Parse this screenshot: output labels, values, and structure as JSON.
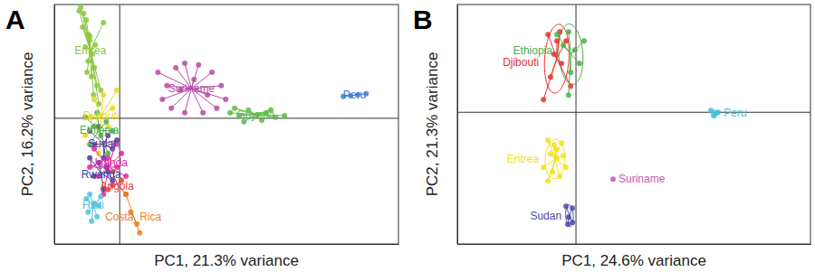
{
  "chart_data": [
    {
      "type": "scatter",
      "title": "A",
      "x_label": "PC1, 21.3% variance",
      "y_label": "PC2, 16.2% variance",
      "xlim": [
        -1.9,
        8.1
      ],
      "ylim": [
        -5.25,
        4.75
      ],
      "xticks": [
        0
      ],
      "yticks": [
        0
      ],
      "grid": true,
      "tick_labels": false,
      "series": [
        {
          "name": "Eritrea",
          "color": "#8cc63f",
          "x": [
            -1.13,
            -1.05,
            -0.97,
            -1.08,
            -0.92,
            -0.87,
            -1,
            -0.79,
            -0.92,
            -0.74,
            -0.82,
            -0.66,
            -0.76,
            -0.61,
            -0.87,
            -1.18,
            -0.47,
            -0.71,
            -0.95,
            -0.55
          ],
          "values": [
            4.64,
            4.38,
            4.11,
            3.81,
            3.51,
            3.25,
            2.98,
            2.68,
            2.38,
            2.11,
            1.74,
            1.36,
            0.98,
            0.6,
            3.43,
            4.49,
            4,
            3.06,
            1.92,
            1.17
          ]
        },
        {
          "name": "Sudan",
          "color": "#5b3a9a",
          "x": [
            -0.61,
            -0.34,
            -0.74,
            -0.21,
            -0.47,
            -0.87,
            -0.08,
            -0.39
          ],
          "values": [
            -0.34,
            -0.72,
            -1.09,
            -1.28,
            -1.66,
            -0.53,
            -0.91,
            -2.04
          ]
        },
        {
          "name": "Djibouti",
          "color": "#e6d81e",
          "x": [
            -0.74,
            -0.47,
            -0.21,
            -0.87,
            -0.34,
            -0.61,
            -0.08,
            -1
          ],
          "values": [
            0.79,
            0.98,
            0.42,
            0.04,
            -0.34,
            -1.47,
            1.17,
            -0.72
          ]
        },
        {
          "name": "Ethiopia",
          "color": "#4daf4a",
          "x": [
            -0.66,
            -0.39,
            -0.87,
            -0.55,
            -0.21,
            -0.74,
            -0.34,
            -1
          ],
          "values": [
            0.23,
            -0.15,
            -1.09,
            -0.72,
            -0.53,
            -0.34,
            -1.47,
            0.04
          ]
        },
        {
          "name": "Rwanda",
          "color": "#3b3f9e",
          "x": [
            -0.61,
            -0.34,
            -0.87,
            -0.21,
            -0.47,
            -0.74
          ],
          "values": [
            -1.85,
            -2.23,
            -1.66,
            -2.6,
            -2.98,
            -2.42
          ]
        },
        {
          "name": "Uganda",
          "color": "#e0259a",
          "x": [
            -0.74,
            -0.34,
            -0.08,
            -0.61,
            -0.21,
            -0.87,
            0.05,
            -0.47,
            0.18,
            -0.13
          ],
          "values": [
            -1.28,
            -1.66,
            -2.04,
            -2.42,
            -2.79,
            -2.04,
            -1.47,
            -3.17,
            -2.42,
            -1.09
          ]
        },
        {
          "name": "Angola",
          "color": "#e8432d",
          "x": [
            -0.21,
            0.05,
            -0.34,
            0.18
          ],
          "values": [
            -2.23,
            -2.6,
            -2.98,
            -3.17
          ]
        },
        {
          "name": "Costa_Rica",
          "color": "#f07f1f",
          "x": [
            0.18,
            0.32,
            0.5,
            0.58
          ],
          "values": [
            -3.17,
            -3.92,
            -4.42,
            -4.79
          ]
        },
        {
          "name": "Haiti",
          "color": "#4fc3dc",
          "x": [
            -0.87,
            -0.74,
            -0.92,
            -0.61,
            -0.82,
            -0.66,
            -0.97,
            -0.55
          ],
          "values": [
            -3.17,
            -3.55,
            -3.92,
            -3.66,
            -4.3,
            -4.11,
            -3.36,
            -3.28
          ]
        },
        {
          "name": "Suriname",
          "color": "#b64ba6",
          "x": [
            1.11,
            1.37,
            1.24,
            1.63,
            1.89,
            2.29,
            2.68,
            2.95,
            3.08,
            2.82,
            2.42,
            1.89,
            1.5,
            2.16,
            2.55,
            1.76
          ],
          "values": [
            1.92,
            1.36,
            0.79,
            2.11,
            2.3,
            2.23,
            1.92,
            1.36,
            0.79,
            0.42,
            0.23,
            0.23,
            0.42,
            1.62,
            0.98,
            1.17
          ]
        },
        {
          "name": "Guyana",
          "color": "#5dbb46",
          "x": [
            3.21,
            3.47,
            3.74,
            4,
            4.26,
            4.53,
            4.79,
            3.61,
            4.13,
            3.34,
            4.39
          ],
          "values": [
            0.23,
            0.11,
            0.34,
            0.15,
            0.23,
            0.04,
            0.11,
            -0.15,
            -0.08,
            0.42,
            0.34
          ]
        },
        {
          "name": "Peru",
          "color": "#3c7fd0",
          "x": [
            6.5,
            6.71,
            6.92,
            7.16
          ],
          "values": [
            0.91,
            0.94,
            0.98,
            1.02
          ]
        }
      ]
    },
    {
      "type": "scatter",
      "title": "B",
      "x_label": "PC1, 24.6% variance",
      "y_label": "PC2, 21.3% variance",
      "xlim": [
        -3.36,
        6.64
      ],
      "ylim": [
        -5.5,
        4.5
      ],
      "xticks": [
        0
      ],
      "yticks": [
        0
      ],
      "grid": true,
      "tick_labels": false,
      "series": [
        {
          "name": "Djibouti",
          "color": "#e8322e",
          "x": [
            -0.79,
            -0.54,
            -0.28,
            -0.62,
            -0.41,
            -0.72,
            -0.15,
            -0.92,
            -0.46
          ],
          "values": [
            3.25,
            2.98,
            2.98,
            2.42,
            2.04,
            1.47,
            1.09,
            0.53,
            3.36
          ]
        },
        {
          "name": "Ethiopia",
          "color": "#4daf4a",
          "x": [
            -0.54,
            -0.21,
            -0.03,
            0.1,
            -0.15,
            -0.36,
            0.23,
            -0.21
          ],
          "values": [
            3.25,
            3.36,
            2.6,
            2.04,
            1.66,
            2.79,
            2.98,
            0.72
          ]
        },
        {
          "name": "Eritrea",
          "color": "#f2e21a",
          "x": [
            -0.79,
            -0.62,
            -0.41,
            -0.72,
            -0.54,
            -0.36,
            -0.92,
            -0.67,
            -0.46,
            -0.28,
            -0.79,
            -0.56
          ],
          "values": [
            -1.17,
            -1.36,
            -1.28,
            -1.74,
            -1.92,
            -1.81,
            -2.3,
            -2.49,
            -2.68,
            -2.3,
            -2.87,
            -1.55
          ]
        },
        {
          "name": "Sudan",
          "color": "#4a4aa8",
          "x": [
            -0.28,
            -0.1,
            -0.21,
            -0.23,
            -0.1
          ],
          "values": [
            -3.92,
            -4,
            -4.38,
            -4.68,
            -4.6
          ]
        },
        {
          "name": "Suriname",
          "color": "#c35bb5",
          "x": [
            1.05
          ],
          "values": [
            -2.79
          ]
        },
        {
          "name": "Peru",
          "color": "#3fc1d8",
          "x": [
            3.82,
            3.95,
            3.9,
            4.03
          ],
          "values": [
            0.08,
            -0.04,
            -0.15,
            0
          ]
        }
      ]
    }
  ]
}
